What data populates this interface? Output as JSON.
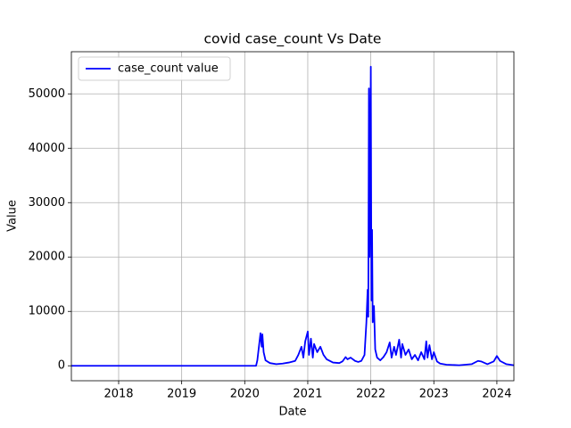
{
  "chart_data": {
    "type": "line",
    "title": "covid case_count Vs Date",
    "x_label": "Date",
    "y_label": "Value",
    "series": [
      {
        "name": "case_count value",
        "color": "#0000ff",
        "x": [
          2017.25,
          2020.18,
          2020.2,
          2020.23,
          2020.25,
          2020.27,
          2020.28,
          2020.3,
          2020.33,
          2020.4,
          2020.5,
          2020.6,
          2020.7,
          2020.8,
          2020.85,
          2020.9,
          2020.93,
          2020.96,
          2021.0,
          2021.02,
          2021.05,
          2021.08,
          2021.1,
          2021.15,
          2021.2,
          2021.25,
          2021.3,
          2021.4,
          2021.5,
          2021.55,
          2021.6,
          2021.63,
          2021.68,
          2021.75,
          2021.8,
          2021.85,
          2021.9,
          2021.93,
          2021.95,
          2021.96,
          2021.97,
          2021.98,
          2021.99,
          2022.0,
          2022.01,
          2022.02,
          2022.03,
          2022.05,
          2022.07,
          2022.1,
          2022.15,
          2022.2,
          2022.25,
          2022.3,
          2022.33,
          2022.37,
          2022.4,
          2022.45,
          2022.48,
          2022.5,
          2022.55,
          2022.6,
          2022.65,
          2022.7,
          2022.75,
          2022.8,
          2022.85,
          2022.88,
          2022.9,
          2022.93,
          2022.97,
          2023.0,
          2023.05,
          2023.1,
          2023.2,
          2023.4,
          2023.6,
          2023.7,
          2023.75,
          2023.85,
          2023.95,
          2024.0,
          2024.05,
          2024.15,
          2024.27
        ],
        "values": [
          0,
          0,
          1000,
          4000,
          6000,
          3500,
          5800,
          2500,
          1000,
          500,
          300,
          400,
          600,
          900,
          2000,
          3500,
          1500,
          4500,
          6300,
          2000,
          5000,
          1500,
          4000,
          2500,
          3500,
          2000,
          1200,
          600,
          500,
          800,
          1600,
          1200,
          1500,
          900,
          700,
          900,
          2000,
          8000,
          14000,
          9000,
          51000,
          20000,
          32000,
          55000,
          12000,
          25000,
          8000,
          11000,
          3000,
          1500,
          1000,
          1600,
          2500,
          4300,
          1500,
          3500,
          2000,
          4800,
          1500,
          4000,
          2000,
          3000,
          1200,
          2000,
          1000,
          2500,
          1200,
          4500,
          1500,
          3800,
          1200,
          2500,
          800,
          400,
          200,
          100,
          300,
          900,
          800,
          300,
          800,
          1800,
          900,
          300,
          100
        ]
      }
    ],
    "xlim": [
      2017.25,
      2024.27
    ],
    "xticks": [
      2018,
      2019,
      2020,
      2021,
      2022,
      2023,
      2024
    ],
    "ylim": [
      -2750,
      57750
    ],
    "yticks": [
      0,
      10000,
      20000,
      30000,
      40000,
      50000
    ],
    "grid": true,
    "legend": "upper left"
  }
}
